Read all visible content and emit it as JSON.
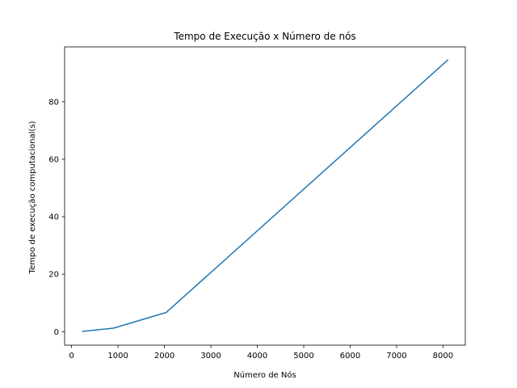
{
  "chart_data": {
    "type": "line",
    "title": "Tempo de Execução x Número de nós",
    "xlabel": "Número de Nós",
    "ylabel": "Tempo de execução computacional(s)",
    "xlim": [
      -150,
      8480
    ],
    "ylim": [
      -4.7,
      99.1
    ],
    "xticks": [
      0,
      1000,
      2000,
      3000,
      4000,
      5000,
      6000,
      7000,
      8000
    ],
    "yticks": [
      0,
      20,
      40,
      60,
      80
    ],
    "grid": false,
    "series": [
      {
        "color": "#1f77b4",
        "x": [
          240,
          900,
          2040,
          8100
        ],
        "y": [
          0.1,
          1.2,
          6.7,
          94.5
        ]
      }
    ]
  }
}
